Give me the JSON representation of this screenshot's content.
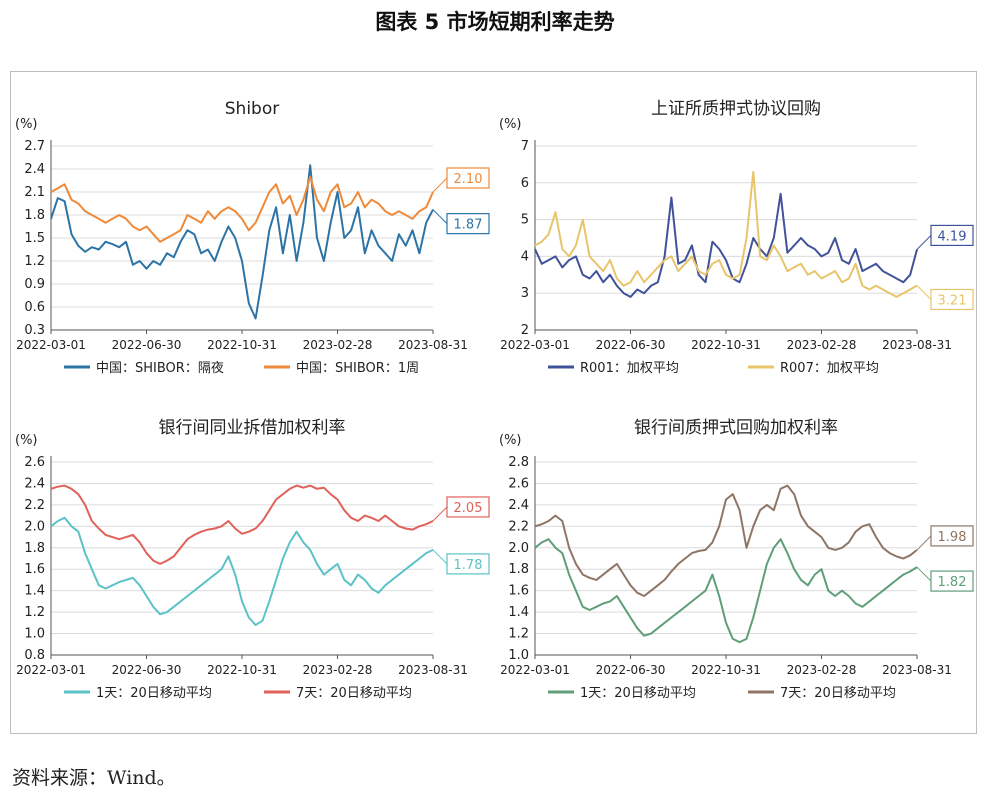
{
  "figure_title": "图表 5 市场短期利率走势",
  "source": "资料来源：Wind。",
  "x_labels": [
    "2022-03-01",
    "2022-06-30",
    "2022-10-31",
    "2023-02-28",
    "2023-08-31"
  ],
  "chart_data": [
    {
      "type": "line",
      "title": "Shibor",
      "ylabel": "(%)",
      "ylim": [
        0.3,
        2.7
      ],
      "yticks": [
        0.3,
        0.6,
        0.9,
        1.2,
        1.5,
        1.8,
        2.1,
        2.4,
        2.7
      ],
      "grid": true,
      "legend": "bottom",
      "series": [
        {
          "name": "中国：SHIBOR：隔夜",
          "color": "#2d74a6",
          "last": "1.87",
          "values": [
            1.75,
            2.02,
            1.98,
            1.55,
            1.4,
            1.32,
            1.38,
            1.35,
            1.45,
            1.42,
            1.38,
            1.45,
            1.15,
            1.2,
            1.1,
            1.2,
            1.15,
            1.3,
            1.25,
            1.45,
            1.6,
            1.55,
            1.3,
            1.35,
            1.2,
            1.45,
            1.65,
            1.5,
            1.2,
            0.65,
            0.45,
            1.0,
            1.6,
            1.9,
            1.3,
            1.8,
            1.2,
            1.7,
            2.45,
            1.5,
            1.2,
            1.7,
            2.1,
            1.5,
            1.6,
            1.9,
            1.3,
            1.6,
            1.4,
            1.3,
            1.2,
            1.55,
            1.4,
            1.6,
            1.3,
            1.7,
            1.87
          ]
        },
        {
          "name": "中国：SHIBOR：1周",
          "color": "#ee8a3a",
          "last": "2.10",
          "values": [
            2.1,
            2.15,
            2.2,
            2.0,
            1.95,
            1.85,
            1.8,
            1.75,
            1.7,
            1.75,
            1.8,
            1.75,
            1.65,
            1.6,
            1.65,
            1.55,
            1.45,
            1.5,
            1.55,
            1.6,
            1.8,
            1.75,
            1.7,
            1.85,
            1.75,
            1.85,
            1.9,
            1.85,
            1.75,
            1.6,
            1.7,
            1.9,
            2.1,
            2.2,
            1.95,
            2.05,
            1.8,
            2.0,
            2.3,
            2.0,
            1.85,
            2.1,
            2.2,
            1.9,
            1.95,
            2.1,
            1.9,
            2.0,
            1.95,
            1.85,
            1.8,
            1.85,
            1.8,
            1.75,
            1.85,
            1.9,
            2.1
          ]
        }
      ]
    },
    {
      "type": "line",
      "title": "上证所质押式协议回购",
      "ylabel": "(%)",
      "ylim": [
        2,
        7
      ],
      "yticks": [
        2,
        3,
        4,
        5,
        6,
        7
      ],
      "grid": true,
      "legend": "bottom",
      "series": [
        {
          "name": "R001：加权平均",
          "color": "#40529a",
          "last": "4.19",
          "values": [
            4.2,
            3.8,
            3.9,
            4.0,
            3.7,
            3.9,
            4.0,
            3.5,
            3.4,
            3.6,
            3.3,
            3.5,
            3.2,
            3.0,
            2.9,
            3.1,
            3.0,
            3.2,
            3.3,
            4.0,
            5.6,
            3.8,
            3.9,
            4.3,
            3.5,
            3.3,
            4.4,
            4.2,
            3.9,
            3.4,
            3.3,
            3.8,
            4.5,
            4.2,
            4.0,
            4.5,
            5.7,
            4.1,
            4.3,
            4.5,
            4.3,
            4.2,
            4.0,
            4.1,
            4.5,
            3.9,
            3.8,
            4.2,
            3.6,
            3.7,
            3.8,
            3.6,
            3.5,
            3.4,
            3.3,
            3.5,
            4.19
          ]
        },
        {
          "name": "R007：加权平均",
          "color": "#e8c46a",
          "last": "3.21",
          "values": [
            4.3,
            4.4,
            4.6,
            5.2,
            4.2,
            4.0,
            4.3,
            5.0,
            4.0,
            3.8,
            3.6,
            3.9,
            3.4,
            3.2,
            3.3,
            3.6,
            3.3,
            3.5,
            3.7,
            3.9,
            4.0,
            3.6,
            3.8,
            4.0,
            3.6,
            3.5,
            3.8,
            3.9,
            3.5,
            3.4,
            3.5,
            4.5,
            6.3,
            4.0,
            3.9,
            4.3,
            4.0,
            3.6,
            3.7,
            3.8,
            3.5,
            3.6,
            3.4,
            3.5,
            3.6,
            3.3,
            3.4,
            3.8,
            3.2,
            3.1,
            3.2,
            3.1,
            3.0,
            2.9,
            3.0,
            3.1,
            3.21
          ]
        }
      ]
    },
    {
      "type": "line",
      "title": "银行间同业拆借加权利率",
      "ylabel": "(%)",
      "ylim": [
        0.8,
        2.6
      ],
      "yticks": [
        0.8,
        1.0,
        1.2,
        1.4,
        1.6,
        1.8,
        2.0,
        2.2,
        2.4,
        2.6
      ],
      "grid": true,
      "legend": "bottom",
      "series": [
        {
          "name": "1天：20日移动平均",
          "color": "#5bc2c7",
          "last": "1.78",
          "values": [
            2.0,
            2.05,
            2.08,
            2.0,
            1.95,
            1.75,
            1.6,
            1.45,
            1.42,
            1.45,
            1.48,
            1.5,
            1.52,
            1.45,
            1.35,
            1.25,
            1.18,
            1.2,
            1.25,
            1.3,
            1.35,
            1.4,
            1.45,
            1.5,
            1.55,
            1.6,
            1.72,
            1.55,
            1.3,
            1.15,
            1.08,
            1.12,
            1.3,
            1.5,
            1.7,
            1.85,
            1.95,
            1.85,
            1.78,
            1.65,
            1.55,
            1.6,
            1.65,
            1.5,
            1.45,
            1.55,
            1.5,
            1.42,
            1.38,
            1.45,
            1.5,
            1.55,
            1.6,
            1.65,
            1.7,
            1.75,
            1.78
          ]
        },
        {
          "name": "7天：20日移动平均",
          "color": "#e0615a",
          "last": "2.05",
          "values": [
            2.35,
            2.37,
            2.38,
            2.35,
            2.3,
            2.2,
            2.05,
            1.98,
            1.92,
            1.9,
            1.88,
            1.9,
            1.92,
            1.85,
            1.75,
            1.68,
            1.65,
            1.68,
            1.72,
            1.8,
            1.88,
            1.92,
            1.95,
            1.97,
            1.98,
            2.0,
            2.05,
            1.98,
            1.93,
            1.95,
            1.98,
            2.05,
            2.15,
            2.25,
            2.3,
            2.35,
            2.38,
            2.36,
            2.38,
            2.35,
            2.36,
            2.3,
            2.25,
            2.15,
            2.08,
            2.05,
            2.1,
            2.08,
            2.05,
            2.1,
            2.05,
            2.0,
            1.98,
            1.97,
            2.0,
            2.02,
            2.05
          ]
        }
      ]
    },
    {
      "type": "line",
      "title": "银行间质押式回购加权利率",
      "ylabel": "(%)",
      "ylim": [
        1.0,
        2.8
      ],
      "yticks": [
        1.0,
        1.2,
        1.4,
        1.6,
        1.8,
        2.0,
        2.2,
        2.4,
        2.6,
        2.8
      ],
      "grid": true,
      "legend": "bottom",
      "series": [
        {
          "name": "1天：20日移动平均",
          "color": "#5f9e78",
          "last": "1.82",
          "values": [
            2.0,
            2.05,
            2.08,
            2.0,
            1.95,
            1.75,
            1.6,
            1.45,
            1.42,
            1.45,
            1.48,
            1.5,
            1.55,
            1.45,
            1.35,
            1.25,
            1.18,
            1.2,
            1.25,
            1.3,
            1.35,
            1.4,
            1.45,
            1.5,
            1.55,
            1.6,
            1.75,
            1.55,
            1.3,
            1.15,
            1.12,
            1.15,
            1.35,
            1.6,
            1.85,
            2.0,
            2.08,
            1.95,
            1.8,
            1.7,
            1.65,
            1.75,
            1.8,
            1.6,
            1.55,
            1.6,
            1.55,
            1.48,
            1.45,
            1.5,
            1.55,
            1.6,
            1.65,
            1.7,
            1.75,
            1.78,
            1.82
          ]
        },
        {
          "name": "7天：20日移动平均",
          "color": "#8f7565",
          "last": "1.98",
          "values": [
            2.2,
            2.22,
            2.25,
            2.3,
            2.25,
            2.0,
            1.85,
            1.75,
            1.72,
            1.7,
            1.75,
            1.8,
            1.85,
            1.75,
            1.65,
            1.58,
            1.55,
            1.6,
            1.65,
            1.7,
            1.78,
            1.85,
            1.9,
            1.95,
            1.97,
            1.98,
            2.05,
            2.2,
            2.45,
            2.5,
            2.35,
            2.0,
            2.2,
            2.35,
            2.4,
            2.35,
            2.55,
            2.58,
            2.5,
            2.3,
            2.2,
            2.15,
            2.1,
            2.0,
            1.98,
            2.0,
            2.05,
            2.15,
            2.2,
            2.22,
            2.1,
            2.0,
            1.95,
            1.92,
            1.9,
            1.93,
            1.98
          ]
        }
      ]
    }
  ]
}
